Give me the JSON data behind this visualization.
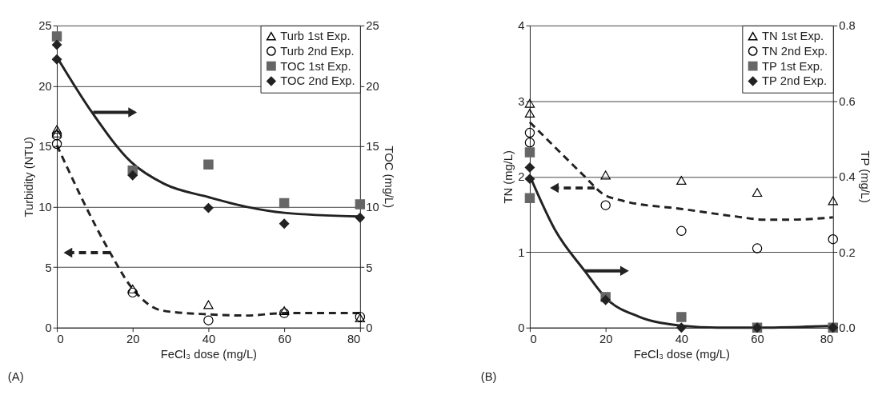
{
  "chart_data": [
    {
      "type": "scatter",
      "xlabel": "FeCl₃ dose (mg/L)",
      "ylabel": "Turbidity (NTU)",
      "y2label": "TOC (mg/L)",
      "xlim": [
        0,
        80
      ],
      "xticks": [
        0,
        20,
        40,
        60,
        80
      ],
      "ylim": [
        0,
        25
      ],
      "yticks": [
        0,
        5,
        10,
        15,
        20,
        25
      ],
      "y2lim": [
        0,
        25
      ],
      "y2ticks": [
        0,
        5,
        10,
        15,
        20,
        25
      ],
      "grid": "y",
      "legend": "top right",
      "annotations": [
        "(A)"
      ],
      "series": [
        {
          "name": "Turb 1st Exp.",
          "type": "scatter",
          "marker": "triangle",
          "color": "#000000",
          "x": [
            0,
            0,
            20,
            40,
            60,
            80
          ],
          "values": [
            16.4,
            16.1,
            3.2,
            1.9,
            1.4,
            0.8
          ]
        },
        {
          "name": "Turb 2nd Exp.",
          "type": "scatter",
          "marker": "circle",
          "color": "#000000",
          "x": [
            0,
            0,
            20,
            40,
            60,
            80
          ],
          "values": [
            15.9,
            15.2,
            2.9,
            0.6,
            1.2,
            0.9
          ]
        },
        {
          "name": "TOC 1st Exp.",
          "type": "scatter",
          "marker": "square",
          "color": "#666666",
          "axis": "y2",
          "x": [
            0,
            20,
            40,
            60,
            80
          ],
          "values": [
            24.1,
            13.0,
            13.5,
            10.3,
            10.2
          ]
        },
        {
          "name": "TOC 2nd Exp.",
          "type": "scatter",
          "marker": "diamond",
          "color": "#222222",
          "axis": "y2",
          "x": [
            0,
            0,
            20,
            40,
            60,
            80
          ],
          "values": [
            23.4,
            22.2,
            12.6,
            9.9,
            8.6,
            9.1
          ]
        },
        {
          "type": "line",
          "line_style": "dashed",
          "color": "#222222",
          "x": [
            0,
            13.7,
            20,
            28,
            40,
            50,
            60,
            80
          ],
          "values": [
            15.1,
            6.4,
            3.2,
            1.4,
            1.1,
            1.0,
            1.2,
            1.2
          ]
        },
        {
          "type": "line",
          "line_style": "solid",
          "color": "#222222",
          "axis": "y2",
          "x": [
            0,
            9.3,
            19.6,
            28.3,
            40,
            50,
            60,
            80
          ],
          "values": [
            22.4,
            17.8,
            13.7,
            11.9,
            10.8,
            10.0,
            9.5,
            9.2
          ]
        }
      ]
    },
    {
      "type": "scatter",
      "xlabel": "FeCl₃ dose (mg/L)",
      "ylabel": "TN (mg/L)",
      "y2label": "TP (mg/L)",
      "xlim": [
        0,
        80
      ],
      "xticks": [
        0,
        20,
        40,
        60,
        80
      ],
      "ylim": [
        0,
        4
      ],
      "yticks": [
        0,
        1,
        2,
        3,
        4
      ],
      "y2lim": [
        0,
        0.8
      ],
      "y2ticks": [
        {
          "value": 0,
          "label": "0.0"
        },
        0.2,
        0.4,
        0.6,
        0.8
      ],
      "grid": "y",
      "legend": "top right",
      "annotations": [
        "(B)"
      ],
      "series": [
        {
          "name": "TN 1st Exp.",
          "type": "scatter",
          "marker": "triangle",
          "color": "#000000",
          "x": [
            0,
            0,
            20,
            40,
            60,
            80
          ],
          "values": [
            2.97,
            2.84,
            2.02,
            1.95,
            1.79,
            1.68
          ]
        },
        {
          "name": "TN 2nd Exp.",
          "type": "scatter",
          "marker": "circle",
          "color": "#000000",
          "x": [
            0,
            0,
            20,
            40,
            60,
            80
          ],
          "values": [
            2.58,
            2.45,
            1.62,
            1.28,
            1.05,
            1.17
          ]
        },
        {
          "name": "TP 1st Exp.",
          "type": "scatter",
          "marker": "square",
          "color": "#666666",
          "axis": "y2",
          "x": [
            0,
            0,
            20,
            40,
            60,
            80
          ],
          "values": [
            0.464,
            0.343,
            0.081,
            0.028,
            0.0,
            0.0
          ]
        },
        {
          "name": "TP 2nd Exp.",
          "type": "scatter",
          "marker": "diamond",
          "color": "#222222",
          "axis": "y2",
          "x": [
            0,
            0,
            20,
            40,
            60,
            80
          ],
          "values": [
            0.424,
            0.394,
            0.073,
            0.0,
            0.0,
            0.0
          ]
        },
        {
          "type": "line",
          "line_style": "dashed",
          "color": "#222222",
          "x": [
            0,
            14.5,
            19,
            24.5,
            40.3,
            54.6,
            61.7,
            69,
            80
          ],
          "values": [
            2.72,
            2.0,
            1.78,
            1.68,
            1.57,
            1.47,
            1.43,
            1.43,
            1.46
          ]
        },
        {
          "type": "line",
          "line_style": "solid",
          "color": "#222222",
          "axis": "y2",
          "x": [
            0,
            6.6,
            14.5,
            20.2,
            28.8,
            40.3,
            49.6,
            61.7,
            80
          ],
          "values": [
            0.402,
            0.26,
            0.15,
            0.077,
            0.029,
            0.005,
            0.0,
            0.0,
            0.005
          ]
        }
      ]
    }
  ]
}
